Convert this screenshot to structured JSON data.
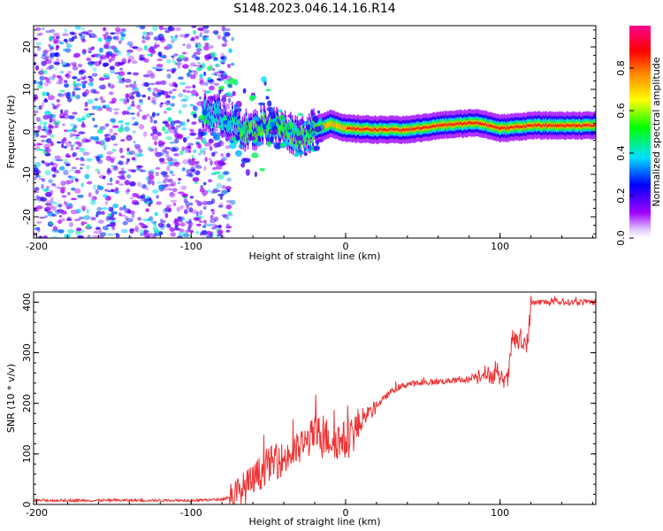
{
  "figure": {
    "title": "S148.2023.046.14.16.R14"
  },
  "chart_data": [
    {
      "type": "heatmap",
      "panel": "spectrogram",
      "xlabel": "Height of straight line (km)",
      "ylabel": "Frequency (Hz)",
      "xlim": [
        -202,
        162
      ],
      "ylim": [
        -25,
        25
      ],
      "xticks": [
        -200,
        -100,
        0,
        100
      ],
      "yticks": [
        -20,
        -10,
        0,
        10,
        20
      ],
      "colorbar": {
        "label": "Normalized spectral amplitude",
        "range": [
          0.0,
          1.0
        ],
        "ticks": [
          "0.0",
          "0.2",
          "0.4",
          "0.6",
          "0.8"
        ],
        "colormap": [
          "#ffffff",
          "#a000ff",
          "#0000ff",
          "#00ffff",
          "#00ff00",
          "#ffff00",
          "#ff8000",
          "#ff0000",
          "#ff0080"
        ]
      },
      "noise_region": {
        "x": [
          -202,
          -73
        ],
        "amplitude": [
          0.1,
          0.45
        ]
      },
      "signal_track": [
        {
          "x": -93,
          "freq": 4.5
        },
        {
          "x": -82,
          "freq": 4.0
        },
        {
          "x": -72,
          "freq": 1.5
        },
        {
          "x": -62,
          "freq": 0.0
        },
        {
          "x": -52,
          "freq": 2.0
        },
        {
          "x": -40,
          "freq": 0.5
        },
        {
          "x": -30,
          "freq": -1.0
        },
        {
          "x": -20,
          "freq": 0.5
        },
        {
          "x": -10,
          "freq": 2.0
        },
        {
          "x": 0,
          "freq": 0.8
        },
        {
          "x": 20,
          "freq": 0.5
        },
        {
          "x": 40,
          "freq": 0.5
        },
        {
          "x": 60,
          "freq": 1.5
        },
        {
          "x": 85,
          "freq": 2.2
        },
        {
          "x": 100,
          "freq": 0.8
        },
        {
          "x": 120,
          "freq": 1.5
        },
        {
          "x": 162,
          "freq": 1.5
        }
      ]
    },
    {
      "type": "line",
      "panel": "snr",
      "xlabel": "Height of straight line (km)",
      "ylabel": "SNR (10 * v/v)",
      "xlim": [
        -202,
        162
      ],
      "ylim": [
        0,
        420
      ],
      "xticks": [
        -200,
        -100,
        0,
        100
      ],
      "yticks": [
        0,
        100,
        200,
        300,
        400
      ],
      "series": [
        {
          "color": "#ee3333",
          "x": [
            -202,
            -150,
            -100,
            -80,
            -70,
            -60,
            -50,
            -40,
            -30,
            -20,
            -10,
            0,
            10,
            20,
            30,
            40,
            50,
            60,
            70,
            80,
            88,
            95,
            100,
            105,
            108,
            112,
            118,
            120,
            125,
            140,
            162
          ],
          "y": [
            8,
            8,
            8,
            10,
            20,
            45,
            80,
            90,
            110,
            140,
            130,
            125,
            160,
            195,
            225,
            238,
            240,
            243,
            245,
            247,
            260,
            255,
            250,
            245,
            330,
            320,
            320,
            398,
            400,
            400,
            400
          ]
        }
      ]
    }
  ]
}
